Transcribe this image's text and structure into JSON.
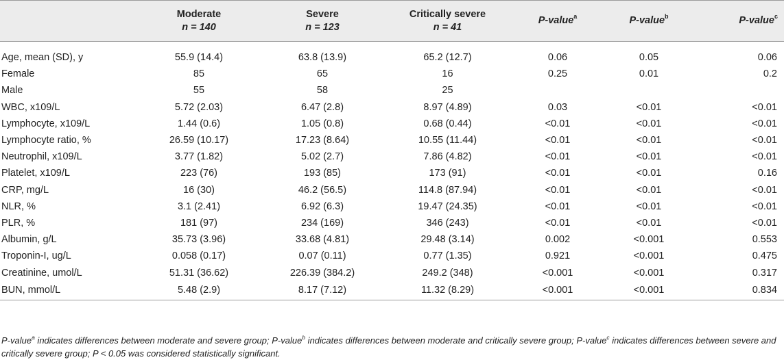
{
  "header": {
    "col1_title": "Moderate",
    "col1_n": "n = 140",
    "col2_title": "Severe",
    "col2_n": "n = 123",
    "col3_title": "Critically severe",
    "col3_n": "n = 41",
    "pa_label": "P-value",
    "pa_sup": "a",
    "pb_label": "P-value",
    "pb_sup": "b",
    "pc_label": "P-value",
    "pc_sup": "c"
  },
  "rows": [
    {
      "label": "Age, mean (SD), y",
      "moderate": "55.9 (14.4)",
      "severe": "63.8 (13.9)",
      "critical": "65.2 (12.7)",
      "pa": "0.06",
      "pb": "0.05",
      "pc": "0.06"
    },
    {
      "label": "Female",
      "moderate": "85",
      "severe": "65",
      "critical": "16",
      "pa": "0.25",
      "pb": "0.01",
      "pc": "0.2"
    },
    {
      "label": "Male",
      "moderate": "55",
      "severe": "58",
      "critical": "25",
      "pa": "",
      "pb": "",
      "pc": ""
    },
    {
      "label": "WBC, x109/L",
      "moderate": "5.72 (2.03)",
      "severe": "6.47 (2.8)",
      "critical": "8.97 (4.89)",
      "pa": "0.03",
      "pb": "<0.01",
      "pc": "<0.01"
    },
    {
      "label": "Lymphocyte, x109/L",
      "moderate": "1.44 (0.6)",
      "severe": "1.05 (0.8)",
      "critical": "0.68 (0.44)",
      "pa": "<0.01",
      "pb": "<0.01",
      "pc": "<0.01"
    },
    {
      "label": "Lymphocyte ratio, %",
      "moderate": "26.59 (10.17)",
      "severe": "17.23 (8.64)",
      "critical": "10.55 (11.44)",
      "pa": "<0.01",
      "pb": "<0.01",
      "pc": "<0.01"
    },
    {
      "label": "Neutrophil, x109/L",
      "moderate": "3.77 (1.82)",
      "severe": "5.02 (2.7)",
      "critical": "7.86 (4.82)",
      "pa": "<0.01",
      "pb": "<0.01",
      "pc": "<0.01"
    },
    {
      "label": "Platelet, x109/L",
      "moderate": "223 (76)",
      "severe": "193 (85)",
      "critical": "173 (91)",
      "pa": "<0.01",
      "pb": "<0.01",
      "pc": "0.16"
    },
    {
      "label": "CRP, mg/L",
      "moderate": "16 (30)",
      "severe": "46.2 (56.5)",
      "critical": "114.8 (87.94)",
      "pa": "<0.01",
      "pb": "<0.01",
      "pc": "<0.01"
    },
    {
      "label": "NLR, %",
      "moderate": "3.1 (2.41)",
      "severe": "6.92 (6.3)",
      "critical": "19.47 (24.35)",
      "pa": "<0.01",
      "pb": "<0.01",
      "pc": "<0.01"
    },
    {
      "label": "PLR, %",
      "moderate": "181 (97)",
      "severe": "234 (169)",
      "critical": "346 (243)",
      "pa": "<0.01",
      "pb": "<0.01",
      "pc": "<0.01"
    },
    {
      "label": "Albumin, g/L",
      "moderate": "35.73 (3.96)",
      "severe": "33.68 (4.81)",
      "critical": "29.48 (3.14)",
      "pa": "0.002",
      "pb": "<0.001",
      "pc": "0.553"
    },
    {
      "label": "Troponin-I, ug/L",
      "moderate": "0.058 (0.17)",
      "severe": "0.07 (0.11)",
      "critical": "0.77 (1.35)",
      "pa": "0.921",
      "pb": "<0.001",
      "pc": "0.475"
    },
    {
      "label": "Creatinine, umol/L",
      "moderate": "51.31 (36.62)",
      "severe": "226.39 (384.2)",
      "critical": "249.2 (348)",
      "pa": "<0.001",
      "pb": "<0.001",
      "pc": "0.317"
    },
    {
      "label": "BUN, mmol/L",
      "moderate": "5.48 (2.9)",
      "severe": "8.17 (7.12)",
      "critical": "11.32 (8.29)",
      "pa": "<0.001",
      "pb": "<0.001",
      "pc": "0.834"
    }
  ],
  "footnote": {
    "p1_label": "P-value",
    "p1_sup": "a",
    "p1_text": " indicates differences between moderate and severe group; ",
    "p2_label": "P-value",
    "p2_sup": "b",
    "p2_text": " indicates differences between moderate and critically severe group; ",
    "p3_label": "P-value",
    "p3_sup": "c",
    "p3_text": " indicates differences between severe and critically severe group; ",
    "sig_text": "P < 0.05 was considered statistically significant."
  }
}
